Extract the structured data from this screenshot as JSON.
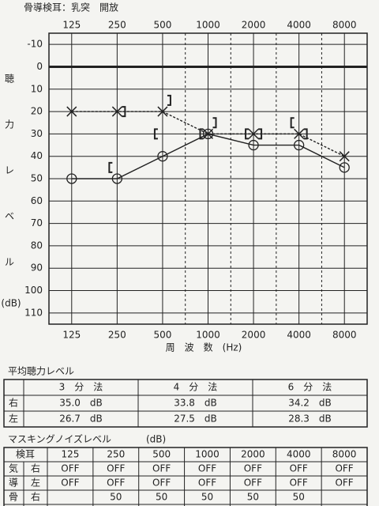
{
  "chart_data": {
    "type": "line",
    "title": "骨導検耳：乳突　開放",
    "x_label": "周　波　数　(Hz)",
    "y_label": [
      "聴",
      "力",
      "レ",
      "ベ",
      "ル"
    ],
    "y_unit": "(dB)",
    "categories": [
      "125",
      "250",
      "500",
      "1000",
      "2000",
      "4000",
      "8000"
    ],
    "ylim": [
      -15,
      115
    ],
    "y_inverted": true,
    "yticks": [
      -10,
      0,
      10,
      20,
      30,
      40,
      50,
      60,
      70,
      80,
      90,
      100,
      110
    ],
    "grid": true,
    "zero_line": true,
    "series": [
      {
        "color": "#222222",
        "marker": "circle",
        "line": "solid",
        "values": [
          50,
          50,
          40,
          30,
          35,
          35,
          45
        ]
      },
      {
        "color": "#222222",
        "marker": "cross",
        "line": "dashed",
        "values": [
          20,
          20,
          20,
          30,
          30,
          30,
          40
        ]
      },
      {
        "color": "#222222",
        "marker": "bracket-left",
        "line": "none",
        "values": [
          null,
          45,
          30,
          30,
          30,
          25,
          null
        ]
      },
      {
        "color": "#222222",
        "marker": "bracket-right",
        "line": "none",
        "values": [
          null,
          20,
          15,
          25,
          30,
          30,
          null
        ]
      }
    ]
  },
  "average_table": {
    "title": "平均聴力レベル",
    "header": [
      "3　分　法",
      "4　分　法",
      "6　分　法"
    ],
    "rows": [
      {
        "ear": "右",
        "cells": [
          "35.0　dB",
          "33.8　dB",
          "34.2　dB"
        ]
      },
      {
        "ear": "左",
        "cells": [
          "26.7　dB",
          "27.5　dB",
          "28.3　dB"
        ]
      }
    ]
  },
  "masking_table": {
    "title": "マスキングノイズレベル",
    "unit": "(dB)",
    "header_label": "検耳",
    "header": [
      "125",
      "250",
      "500",
      "1000",
      "2000",
      "4000",
      "8000"
    ],
    "rows": [
      {
        "group": "気",
        "ear": "右",
        "cells": [
          "OFF",
          "OFF",
          "OFF",
          "OFF",
          "OFF",
          "OFF",
          "OFF"
        ]
      },
      {
        "group": "導",
        "ear": "左",
        "cells": [
          "OFF",
          "OFF",
          "OFF",
          "OFF",
          "OFF",
          "OFF",
          "OFF"
        ]
      },
      {
        "group": "骨",
        "ear": "右",
        "cells": [
          null,
          "50",
          "50",
          "50",
          "50",
          "50",
          null
        ]
      }
    ]
  }
}
